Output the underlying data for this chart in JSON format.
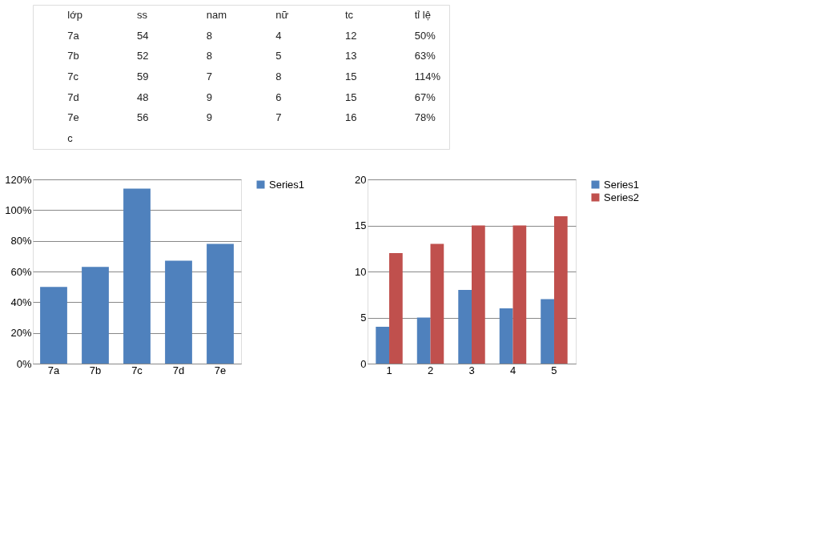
{
  "chart_data": [
    {
      "type": "other",
      "annotations": [
        "lớp",
        "ss",
        "nam",
        "nữ",
        "tc",
        "tỉ lệ",
        "7a",
        "54",
        "8",
        "4",
        "12",
        "50%",
        "7b",
        "52",
        "8",
        "5",
        "13",
        "63%",
        "7c",
        "59",
        "7",
        "8",
        "15",
        "114%",
        "7d",
        "48",
        "9",
        "6",
        "15",
        "67%",
        "7e",
        "56",
        "9",
        "7",
        "16",
        "78%",
        "c"
      ]
    },
    {
      "type": "bar",
      "categories": [
        "7a",
        "7b",
        "7c",
        "7d",
        "7e"
      ],
      "series": [
        {
          "name": "Series1",
          "color": "#4f81bd",
          "values": [
            50,
            63,
            114,
            67,
            78
          ]
        }
      ],
      "ylim": [
        0,
        120
      ],
      "yticks": [
        {
          "value": 0,
          "label": "0%"
        },
        {
          "value": 20,
          "label": "20%"
        },
        {
          "value": 40,
          "label": "40%"
        },
        {
          "value": 60,
          "label": "60%"
        },
        {
          "value": 80,
          "label": "80%"
        },
        {
          "value": 100,
          "label": "100%"
        },
        {
          "value": 120,
          "label": "120%"
        }
      ],
      "grid": "y",
      "legend": "right"
    },
    {
      "type": "bar",
      "categories": [
        "1",
        "2",
        "3",
        "4",
        "5"
      ],
      "series": [
        {
          "name": "Series1",
          "color": "#4f81bd",
          "values": [
            4,
            5,
            8,
            6,
            7
          ]
        },
        {
          "name": "Series2",
          "color": "#c0504d",
          "values": [
            12,
            13,
            15,
            15,
            16
          ]
        }
      ],
      "ylim": [
        0,
        20
      ],
      "yticks": [
        0,
        5,
        10,
        15,
        20
      ],
      "grid": "y",
      "legend": "right"
    }
  ]
}
